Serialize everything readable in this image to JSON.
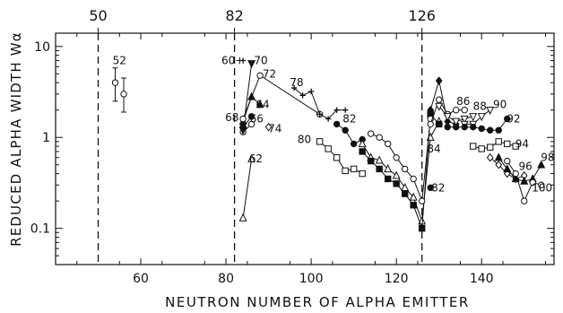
{
  "chart_data": {
    "type": "scatter",
    "xlabel": "NEUTRON NUMBER OF ALPHA EMITTER",
    "ylabel": "REDUCED ALPHA WIDTH Wα",
    "xlim": [
      40,
      157
    ],
    "ylim": [
      0.04,
      14
    ],
    "yscale": "log",
    "grid": false,
    "x_ticks": [
      60,
      80,
      100,
      120,
      140
    ],
    "x_tick_labels": [
      "60",
      "80",
      "100",
      "120",
      "140"
    ],
    "y_ticks": [
      0.1,
      1,
      10
    ],
    "y_tick_labels": [
      "0.1",
      "1",
      "10"
    ],
    "magic_numbers": [
      50,
      82,
      126
    ],
    "magic_labels": [
      "50",
      "82",
      "126"
    ],
    "series": [
      {
        "name": "52",
        "marker": "circle-open",
        "connected": false,
        "points": [
          {
            "x": 54,
            "y": 4.0,
            "err_lo": 2.5,
            "err_hi": 5.8
          },
          {
            "x": 56,
            "y": 3.0,
            "err_lo": 1.9,
            "err_hi": 4.5
          }
        ]
      },
      {
        "name": "60",
        "marker": "plus",
        "points": [
          {
            "x": 84,
            "y": 7.0
          }
        ]
      },
      {
        "name": "62",
        "marker": "triangle-open",
        "points": [
          {
            "x": 84,
            "y": 0.13
          },
          {
            "x": 86,
            "y": 0.58
          }
        ]
      },
      {
        "name": "64",
        "marker": "triangle-filled",
        "points": [
          {
            "x": 84,
            "y": 1.5
          },
          {
            "x": 86,
            "y": 2.8
          },
          {
            "x": 88,
            "y": 2.3
          }
        ]
      },
      {
        "name": "66",
        "marker": "circle-filled",
        "points": [
          {
            "x": 84,
            "y": 1.3
          },
          {
            "x": 86,
            "y": 1.7
          }
        ]
      },
      {
        "name": "68",
        "marker": "circle-open",
        "points": [
          {
            "x": 84,
            "y": 1.15
          },
          {
            "x": 86,
            "y": 1.4
          }
        ]
      },
      {
        "name": "70",
        "marker": "triangle-down-filled",
        "points": [
          {
            "x": 84,
            "y": 1.2
          },
          {
            "x": 86,
            "y": 6.5
          }
        ]
      },
      {
        "name": "72",
        "marker": "circle-open",
        "points": [
          {
            "x": 84,
            "y": 1.6
          },
          {
            "x": 88,
            "y": 4.8
          },
          {
            "x": 102,
            "y": 1.8
          }
        ]
      },
      {
        "name": "74",
        "marker": "diamond-open",
        "points": [
          {
            "x": 90,
            "y": 1.3
          }
        ]
      },
      {
        "name": "78",
        "marker": "plus",
        "points": [
          {
            "x": 96,
            "y": 3.5
          },
          {
            "x": 98,
            "y": 2.9
          },
          {
            "x": 100,
            "y": 3.2
          },
          {
            "x": 102,
            "y": 1.8
          },
          {
            "x": 104,
            "y": 1.6
          },
          {
            "x": 106,
            "y": 2.0
          },
          {
            "x": 108,
            "y": 2.0
          }
        ]
      },
      {
        "name": "80",
        "marker": "square-open",
        "points": [
          {
            "x": 102,
            "y": 0.9
          },
          {
            "x": 104,
            "y": 0.75
          },
          {
            "x": 106,
            "y": 0.6
          },
          {
            "x": 108,
            "y": 0.43
          },
          {
            "x": 110,
            "y": 0.45
          },
          {
            "x": 112,
            "y": 0.4
          }
        ]
      },
      {
        "name": "82",
        "marker": "circle-filled",
        "points": [
          {
            "x": 106,
            "y": 1.4
          },
          {
            "x": 108,
            "y": 1.2
          },
          {
            "x": 110,
            "y": 0.85
          },
          {
            "x": 112,
            "y": 0.95
          }
        ]
      },
      {
        "name": "82",
        "marker": "circle-filled",
        "points": [
          {
            "x": 128,
            "y": 0.28
          }
        ]
      },
      {
        "name": "84",
        "marker": "triangle-open",
        "points": [
          {
            "x": 112,
            "y": 0.85
          },
          {
            "x": 114,
            "y": 0.6
          },
          {
            "x": 116,
            "y": 0.56
          },
          {
            "x": 118,
            "y": 0.45
          },
          {
            "x": 120,
            "y": 0.38
          },
          {
            "x": 122,
            "y": 0.28
          },
          {
            "x": 124,
            "y": 0.22
          },
          {
            "x": 126,
            "y": 0.12
          },
          {
            "x": 128,
            "y": 1.0
          },
          {
            "x": 130,
            "y": 1.5
          }
        ]
      },
      {
        "name": "",
        "marker": "square-filled",
        "points": [
          {
            "x": 112,
            "y": 0.7
          },
          {
            "x": 114,
            "y": 0.55
          },
          {
            "x": 116,
            "y": 0.45
          },
          {
            "x": 118,
            "y": 0.35
          },
          {
            "x": 120,
            "y": 0.31
          },
          {
            "x": 122,
            "y": 0.24
          },
          {
            "x": 124,
            "y": 0.18
          },
          {
            "x": 126,
            "y": 0.1
          },
          {
            "x": 128,
            "y": 1.8
          },
          {
            "x": 130,
            "y": 1.4
          }
        ]
      },
      {
        "name": "",
        "marker": "circle-open",
        "points": [
          {
            "x": 114,
            "y": 1.1
          },
          {
            "x": 116,
            "y": 1.0
          },
          {
            "x": 118,
            "y": 0.85
          },
          {
            "x": 120,
            "y": 0.6
          },
          {
            "x": 122,
            "y": 0.45
          },
          {
            "x": 124,
            "y": 0.35
          },
          {
            "x": 126,
            "y": 0.2
          },
          {
            "x": 128,
            "y": 1.6
          }
        ]
      },
      {
        "name": "86",
        "marker": "circle-open",
        "points": [
          {
            "x": 128,
            "y": 1.4
          },
          {
            "x": 130,
            "y": 2.6
          },
          {
            "x": 132,
            "y": 1.8
          },
          {
            "x": 134,
            "y": 2.0
          },
          {
            "x": 136,
            "y": 2.0
          }
        ]
      },
      {
        "name": "86",
        "marker": "diamond-filled",
        "points": [
          {
            "x": 128,
            "y": 2.0
          },
          {
            "x": 130,
            "y": 4.2
          },
          {
            "x": 132,
            "y": 1.5
          },
          {
            "x": 134,
            "y": 1.4
          }
        ]
      },
      {
        "name": "88",
        "marker": "triangle-down-open",
        "points": [
          {
            "x": 130,
            "y": 2.2
          },
          {
            "x": 132,
            "y": 1.7
          },
          {
            "x": 134,
            "y": 1.5
          },
          {
            "x": 136,
            "y": 1.6
          },
          {
            "x": 138,
            "y": 1.7
          }
        ]
      },
      {
        "name": "90",
        "marker": "triangle-down-open",
        "points": [
          {
            "x": 136,
            "y": 1.4
          },
          {
            "x": 138,
            "y": 1.4
          },
          {
            "x": 140,
            "y": 1.7
          },
          {
            "x": 142,
            "y": 2.0
          }
        ]
      },
      {
        "name": "92",
        "marker": "circle-filled",
        "points": [
          {
            "x": 132,
            "y": 1.3
          },
          {
            "x": 134,
            "y": 1.3
          },
          {
            "x": 136,
            "y": 1.3
          },
          {
            "x": 138,
            "y": 1.3
          },
          {
            "x": 140,
            "y": 1.25
          },
          {
            "x": 142,
            "y": 1.2
          },
          {
            "x": 144,
            "y": 1.2
          },
          {
            "x": 146,
            "y": 1.6
          }
        ]
      },
      {
        "name": "94",
        "marker": "square-open",
        "points": [
          {
            "x": 138,
            "y": 0.8
          },
          {
            "x": 140,
            "y": 0.75
          },
          {
            "x": 142,
            "y": 0.78
          },
          {
            "x": 144,
            "y": 0.9
          },
          {
            "x": 146,
            "y": 0.85
          },
          {
            "x": 148,
            "y": 0.8
          }
        ]
      },
      {
        "name": "96",
        "marker": "diamond-open",
        "points": [
          {
            "x": 142,
            "y": 0.6
          },
          {
            "x": 144,
            "y": 0.5
          },
          {
            "x": 146,
            "y": 0.4
          },
          {
            "x": 148,
            "y": 0.35
          },
          {
            "x": 150,
            "y": 0.38
          }
        ]
      },
      {
        "name": "98",
        "marker": "triangle-filled",
        "points": [
          {
            "x": 144,
            "y": 0.6
          },
          {
            "x": 146,
            "y": 0.45
          },
          {
            "x": 148,
            "y": 0.35
          },
          {
            "x": 150,
            "y": 0.33
          },
          {
            "x": 152,
            "y": 0.35
          },
          {
            "x": 154,
            "y": 0.5
          }
        ]
      },
      {
        "name": "100",
        "marker": "circle-open",
        "points": [
          {
            "x": 146,
            "y": 0.55
          },
          {
            "x": 148,
            "y": 0.4
          },
          {
            "x": 150,
            "y": 0.2
          },
          {
            "x": 152,
            "y": 0.32
          },
          {
            "x": 154,
            "y": 0.3
          }
        ]
      }
    ],
    "annotations": [
      {
        "text": "52",
        "x": 55,
        "y": 7.0
      },
      {
        "text": "60+",
        "x": 81.6,
        "y": 7.0
      },
      {
        "text": "70",
        "x": 88.2,
        "y": 7.0
      },
      {
        "text": "72",
        "x": 90.2,
        "y": 5.0
      },
      {
        "text": "64",
        "x": 88.6,
        "y": 2.3
      },
      {
        "text": "68",
        "x": 81.4,
        "y": 1.65
      },
      {
        "text": "66",
        "x": 87.2,
        "y": 1.6
      },
      {
        "text": "74",
        "x": 91.5,
        "y": 1.25
      },
      {
        "text": "62",
        "x": 87,
        "y": 0.58
      },
      {
        "text": "78",
        "x": 96.6,
        "y": 4.0
      },
      {
        "text": "82",
        "x": 109,
        "y": 1.6
      },
      {
        "text": "80",
        "x": 98.4,
        "y": 0.95
      },
      {
        "text": "84",
        "x": 128.8,
        "y": 0.75
      },
      {
        "text": "82",
        "x": 129.8,
        "y": 0.28
      },
      {
        "text": "86",
        "x": 135.7,
        "y": 2.5
      },
      {
        "text": "88",
        "x": 139.6,
        "y": 2.2
      },
      {
        "text": "90",
        "x": 144.3,
        "y": 2.3
      },
      {
        "text": "92",
        "x": 147.5,
        "y": 1.6
      },
      {
        "text": "94",
        "x": 149.5,
        "y": 0.85
      },
      {
        "text": "96",
        "x": 150.3,
        "y": 0.48
      },
      {
        "text": "98",
        "x": 155.5,
        "y": 0.6
      },
      {
        "text": "100",
        "x": 154.2,
        "y": 0.28
      }
    ]
  }
}
